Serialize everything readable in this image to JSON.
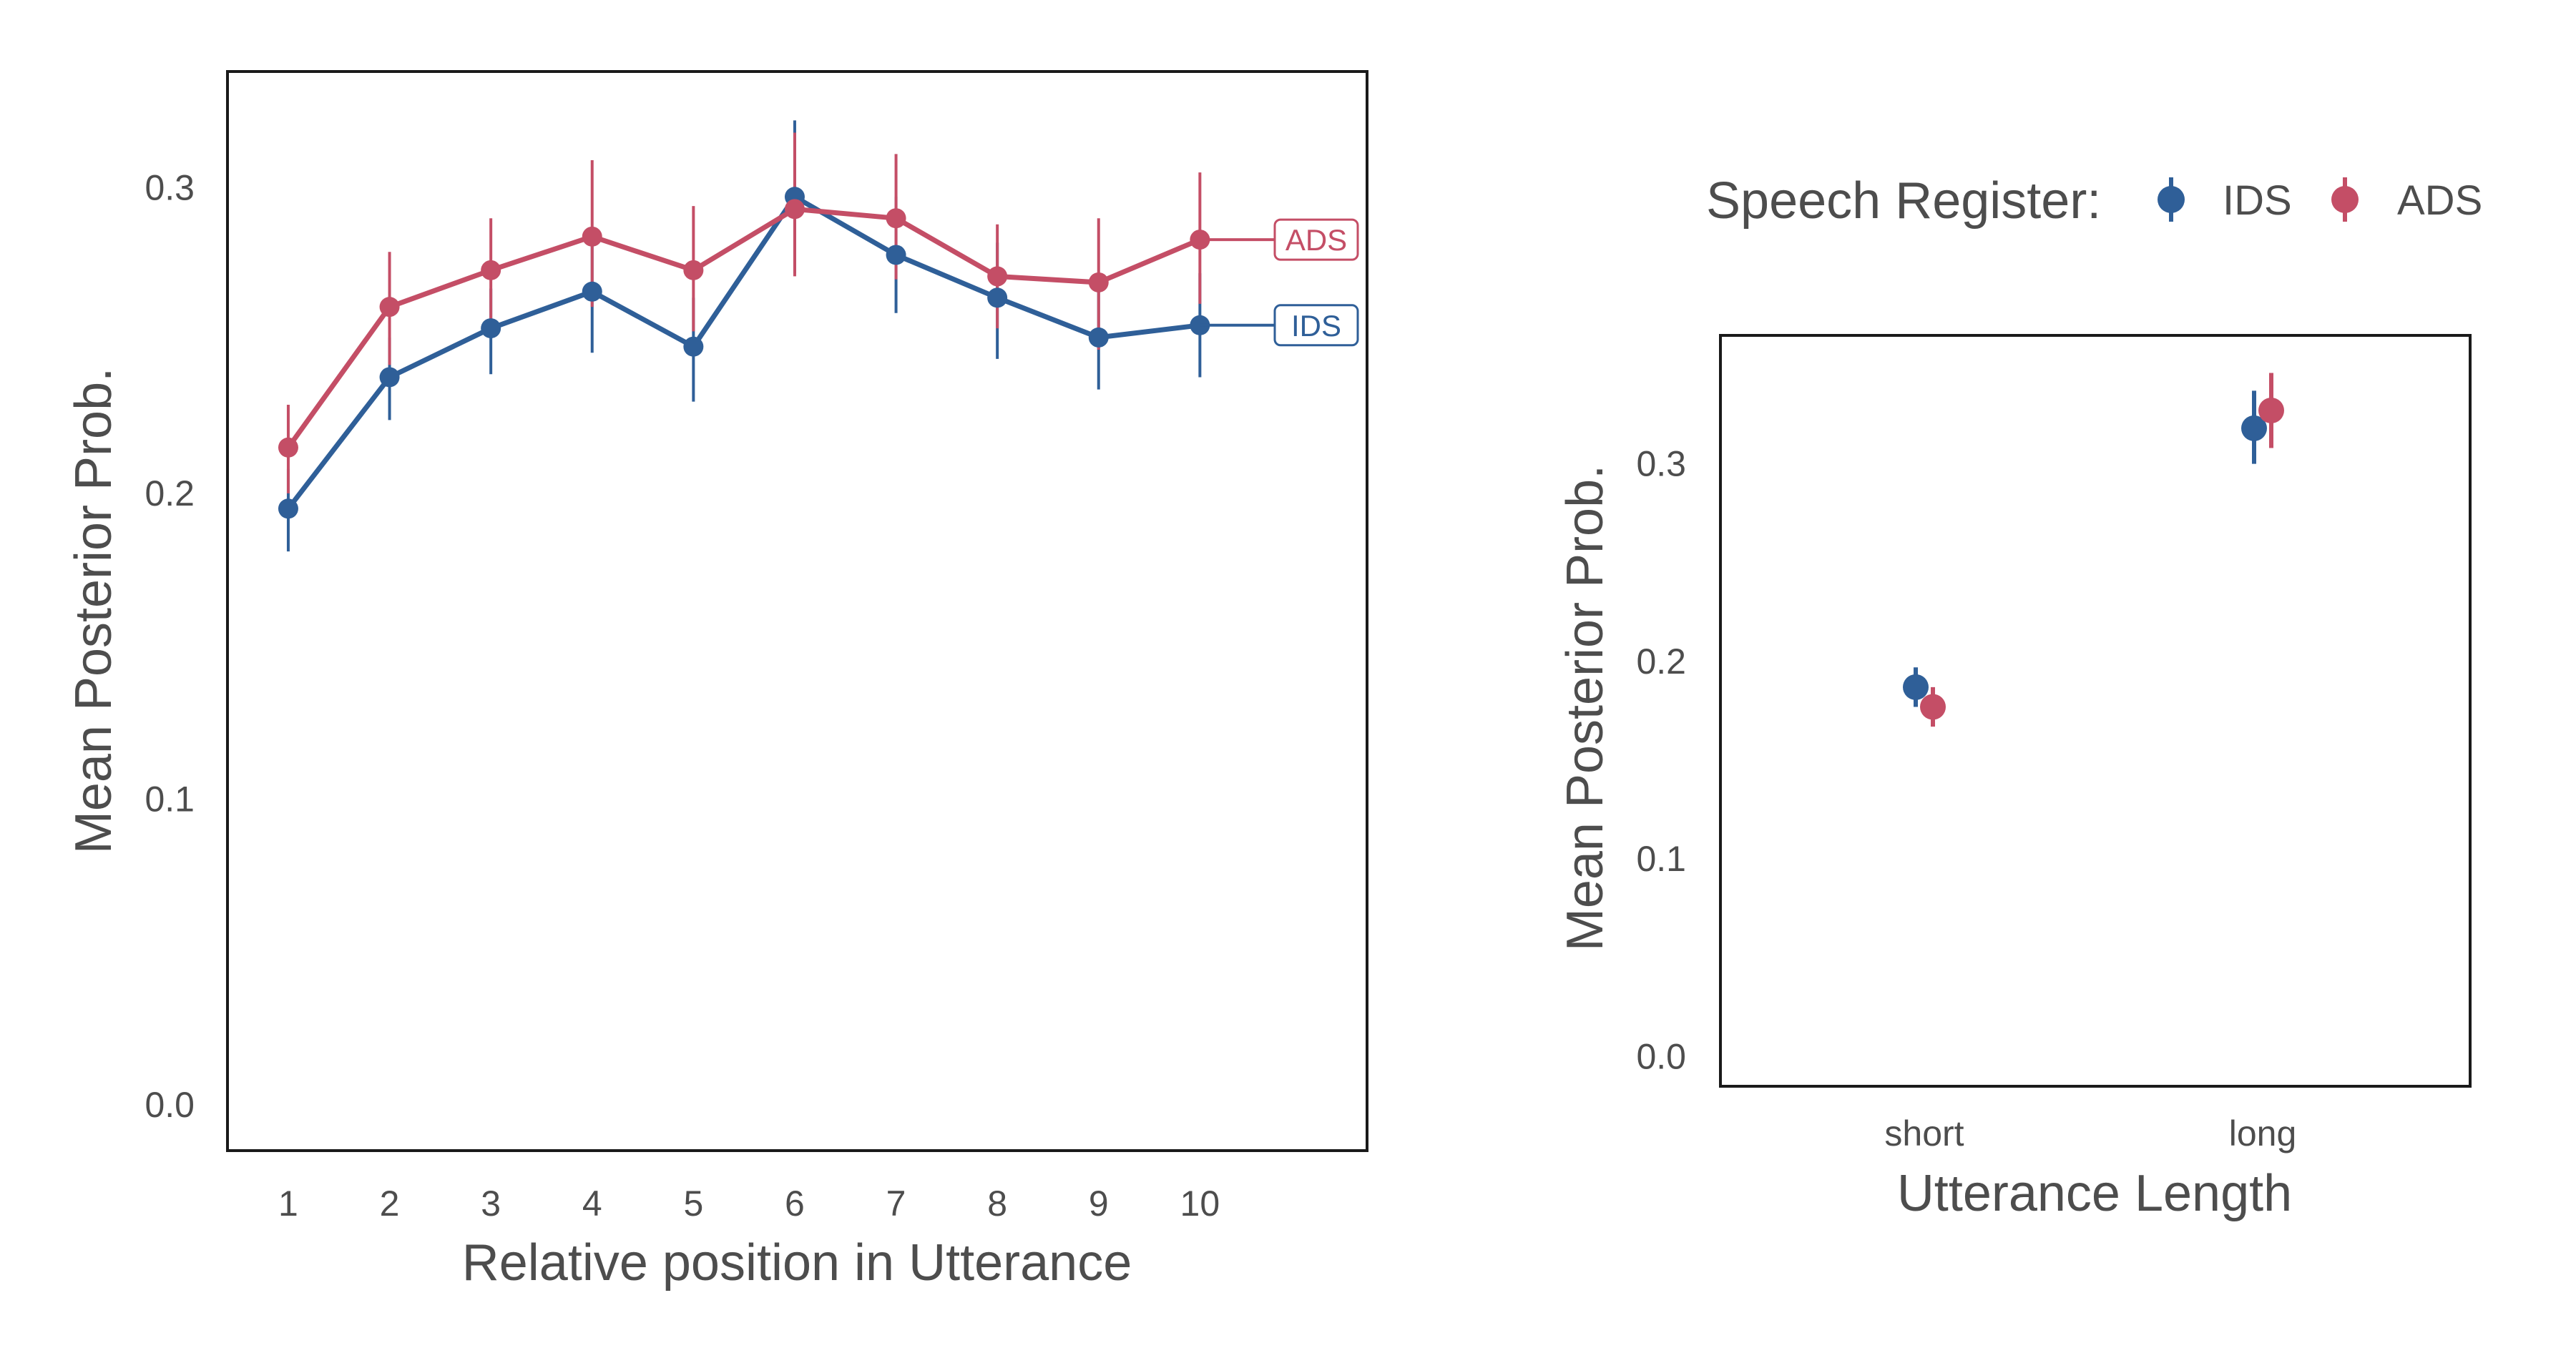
{
  "colors": {
    "IDS": "#2f5f98",
    "ADS": "#c44e66",
    "text": "#4d4d4d",
    "frame": "#1a1a1a"
  },
  "legend": {
    "title": "Speech Register:",
    "items": [
      "IDS",
      "ADS"
    ]
  },
  "chart_data": [
    {
      "type": "line",
      "xlabel": "Relative position in Utterance",
      "ylabel": "Mean Posterior Prob.",
      "x": [
        1,
        2,
        3,
        4,
        5,
        6,
        7,
        8,
        9,
        10
      ],
      "xlim": [
        0.4,
        11.65
      ],
      "ylim": [
        -0.015,
        0.338
      ],
      "yticks": [
        0.0,
        0.1,
        0.2,
        0.3
      ],
      "ytick_labels": [
        "0.0",
        "0.1",
        "0.2",
        "0.3"
      ],
      "xtick_labels": [
        "1",
        "2",
        "3",
        "4",
        "5",
        "6",
        "7",
        "8",
        "9",
        "10"
      ],
      "grid": false,
      "series": [
        {
          "name": "IDS",
          "values": [
            0.195,
            0.238,
            0.254,
            0.266,
            0.248,
            0.297,
            0.278,
            0.264,
            0.251,
            0.255
          ],
          "err_low": [
            0.181,
            0.224,
            0.239,
            0.246,
            0.23,
            0.272,
            0.259,
            0.244,
            0.234,
            0.238
          ],
          "err_high": [
            0.208,
            0.251,
            0.267,
            0.285,
            0.264,
            0.322,
            0.297,
            0.282,
            0.268,
            0.272
          ]
        },
        {
          "name": "ADS",
          "values": [
            0.215,
            0.261,
            0.273,
            0.284,
            0.273,
            0.293,
            0.29,
            0.271,
            0.269,
            0.283
          ],
          "err_low": [
            0.2,
            0.242,
            0.256,
            0.261,
            0.253,
            0.271,
            0.27,
            0.254,
            0.247,
            0.262
          ],
          "err_high": [
            0.229,
            0.279,
            0.29,
            0.309,
            0.294,
            0.318,
            0.311,
            0.288,
            0.29,
            0.305
          ]
        }
      ],
      "end_labels": [
        "ADS",
        "IDS"
      ]
    },
    {
      "type": "scatter",
      "xlabel": "Utterance Length",
      "ylabel": "Mean Posterior Prob.",
      "categories": [
        "short",
        "long"
      ],
      "ylim": [
        -0.015,
        0.365
      ],
      "yticks": [
        0.0,
        0.1,
        0.2,
        0.3
      ],
      "ytick_labels": [
        "0.0",
        "0.1",
        "0.2",
        "0.3"
      ],
      "grid": false,
      "series": [
        {
          "name": "IDS",
          "values": [
            0.187,
            0.318
          ],
          "err_low": [
            0.177,
            0.3
          ],
          "err_high": [
            0.197,
            0.337
          ]
        },
        {
          "name": "ADS",
          "values": [
            0.177,
            0.327
          ],
          "err_low": [
            0.167,
            0.308
          ],
          "err_high": [
            0.187,
            0.346
          ]
        }
      ]
    }
  ]
}
